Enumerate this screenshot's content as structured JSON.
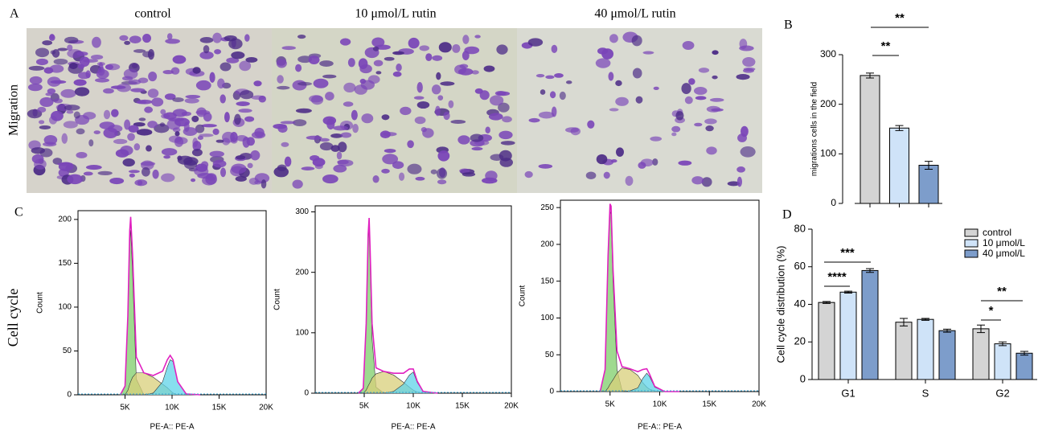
{
  "figure": {
    "panel_labels": [
      "A",
      "B",
      "C",
      "D"
    ],
    "row_labels": [
      "Migration",
      "Cell cycle"
    ],
    "image_titles": [
      "control",
      "10 μmol/L rutin",
      "40 μmol/L rutin"
    ]
  },
  "chart_data": [
    {
      "type": "bar",
      "y_label": "migrations cells in the field",
      "categories": [
        null,
        null,
        null
      ],
      "values": [
        258,
        152,
        77
      ],
      "errors": [
        5,
        5,
        8
      ],
      "colors": [
        "#d4d4d4",
        "#cfe3f8",
        "#7d9dcb"
      ],
      "ylim": [
        0,
        300
      ],
      "yticks": [
        0,
        100,
        200,
        300
      ],
      "annotations": [
        "**",
        "**"
      ]
    },
    {
      "type": "area",
      "x_label": "PE-A:: PE-A",
      "y_label": "Count",
      "x": [
        4500,
        5000,
        5300,
        5500,
        5600,
        5800,
        6200,
        7000,
        8000,
        9000,
        9500,
        9800,
        10100,
        10600,
        11500,
        13000
      ],
      "series": [
        {
          "color": "#7dcd6a",
          "filled": true,
          "values": [
            0,
            10,
            85,
            175,
            188,
            140,
            18,
            0,
            0,
            0,
            0,
            0,
            0,
            0,
            0,
            0
          ]
        },
        {
          "color": "#d8cf7a",
          "filled": true,
          "values": [
            0,
            0,
            5,
            12,
            15,
            20,
            25,
            25,
            20,
            12,
            8,
            5,
            2,
            0,
            0,
            0
          ]
        },
        {
          "color": "#5fd3e8",
          "filled": true,
          "values": [
            0,
            0,
            0,
            0,
            0,
            0,
            0,
            0,
            2,
            15,
            32,
            40,
            38,
            15,
            1,
            0
          ]
        },
        {
          "color": "#e020c0",
          "filled": false,
          "values": [
            0,
            10,
            90,
            187,
            203,
            160,
            43,
            25,
            22,
            27,
            40,
            45,
            40,
            15,
            1,
            0
          ]
        }
      ],
      "xlim": [
        0,
        20000
      ],
      "xticks": [
        {
          "value": 5000,
          "label": "5K"
        },
        {
          "value": 10000,
          "label": "10K"
        },
        {
          "value": 15000,
          "label": "15K"
        },
        {
          "value": 20000,
          "label": "20K"
        }
      ],
      "ylim": [
        0,
        210
      ],
      "yticks": [
        0,
        50,
        100,
        150,
        200
      ]
    },
    {
      "type": "area",
      "x_label": "PE-A:: PE-A",
      "y_label": "Count",
      "x": [
        4400,
        4900,
        5200,
        5400,
        5500,
        5600,
        5800,
        6200,
        7000,
        8000,
        9000,
        9600,
        10000,
        10400,
        11000,
        12500
      ],
      "series": [
        {
          "color": "#7dcd6a",
          "filled": true,
          "values": [
            0,
            8,
            110,
            250,
            275,
            220,
            90,
            10,
            0,
            0,
            0,
            0,
            0,
            0,
            0,
            0
          ]
        },
        {
          "color": "#d8cf7a",
          "filled": true,
          "values": [
            0,
            0,
            5,
            12,
            15,
            18,
            25,
            32,
            36,
            30,
            18,
            10,
            5,
            2,
            0,
            0
          ]
        },
        {
          "color": "#5fd3e8",
          "filled": true,
          "values": [
            0,
            0,
            0,
            0,
            0,
            0,
            0,
            0,
            0,
            3,
            15,
            30,
            35,
            18,
            3,
            0
          ]
        },
        {
          "color": "#e020c0",
          "filled": false,
          "values": [
            0,
            8,
            115,
            262,
            290,
            238,
            115,
            42,
            36,
            33,
            33,
            40,
            40,
            20,
            3,
            0
          ]
        }
      ],
      "xlim": [
        0,
        20000
      ],
      "xticks": [
        {
          "value": 5000,
          "label": "5K"
        },
        {
          "value": 10000,
          "label": "10K"
        },
        {
          "value": 15000,
          "label": "15K"
        },
        {
          "value": 20000,
          "label": "20K"
        }
      ],
      "ylim": [
        0,
        310
      ],
      "yticks": [
        0,
        100,
        200,
        300
      ]
    },
    {
      "type": "area",
      "x_label": "PE-A:: PE-A",
      "y_label": "Count",
      "x": [
        4000,
        4500,
        4800,
        5000,
        5100,
        5300,
        5700,
        6200,
        7000,
        7800,
        8300,
        8700,
        9000,
        9500,
        10500,
        12000
      ],
      "series": [
        {
          "color": "#7dcd6a",
          "filled": true,
          "values": [
            0,
            30,
            180,
            245,
            240,
            150,
            30,
            2,
            0,
            0,
            0,
            0,
            0,
            0,
            0,
            0
          ]
        },
        {
          "color": "#d8cf7a",
          "filled": true,
          "values": [
            0,
            0,
            5,
            10,
            12,
            16,
            25,
            32,
            30,
            22,
            12,
            6,
            3,
            1,
            0,
            0
          ]
        },
        {
          "color": "#5fd3e8",
          "filled": true,
          "values": [
            0,
            0,
            0,
            0,
            0,
            0,
            0,
            0,
            1,
            5,
            18,
            25,
            20,
            6,
            0,
            0
          ]
        },
        {
          "color": "#e020c0",
          "filled": false,
          "values": [
            0,
            30,
            185,
            255,
            252,
            166,
            55,
            34,
            31,
            27,
            30,
            31,
            23,
            7,
            0,
            0
          ]
        }
      ],
      "xlim": [
        0,
        20000
      ],
      "xticks": [
        {
          "value": 5000,
          "label": "5K"
        },
        {
          "value": 10000,
          "label": "10K"
        },
        {
          "value": 15000,
          "label": "15K"
        },
        {
          "value": 20000,
          "label": "20K"
        }
      ],
      "ylim": [
        0,
        260
      ],
      "yticks": [
        0,
        50,
        100,
        150,
        200,
        250
      ]
    },
    {
      "type": "grouped_bar",
      "y_label": "Cell cycle distribution (%)",
      "categories": [
        "G1",
        "S",
        "G2"
      ],
      "series": [
        {
          "name": "control",
          "color": "#d4d4d4",
          "values": [
            41,
            30.5,
            27
          ],
          "errors": [
            0.5,
            2,
            2
          ]
        },
        {
          "name": "10 μmol/L",
          "color": "#cfe3f8",
          "values": [
            46.5,
            32,
            19
          ],
          "errors": [
            0.5,
            0.5,
            1
          ]
        },
        {
          "name": "40 μmol/L",
          "color": "#7d9dcb",
          "values": [
            58,
            26,
            14
          ],
          "errors": [
            1,
            0.8,
            1
          ]
        }
      ],
      "ylim": [
        0,
        80
      ],
      "yticks": [
        0,
        20,
        40,
        60,
        80
      ],
      "annotations": [
        "****",
        "***",
        "*",
        "**"
      ]
    }
  ]
}
